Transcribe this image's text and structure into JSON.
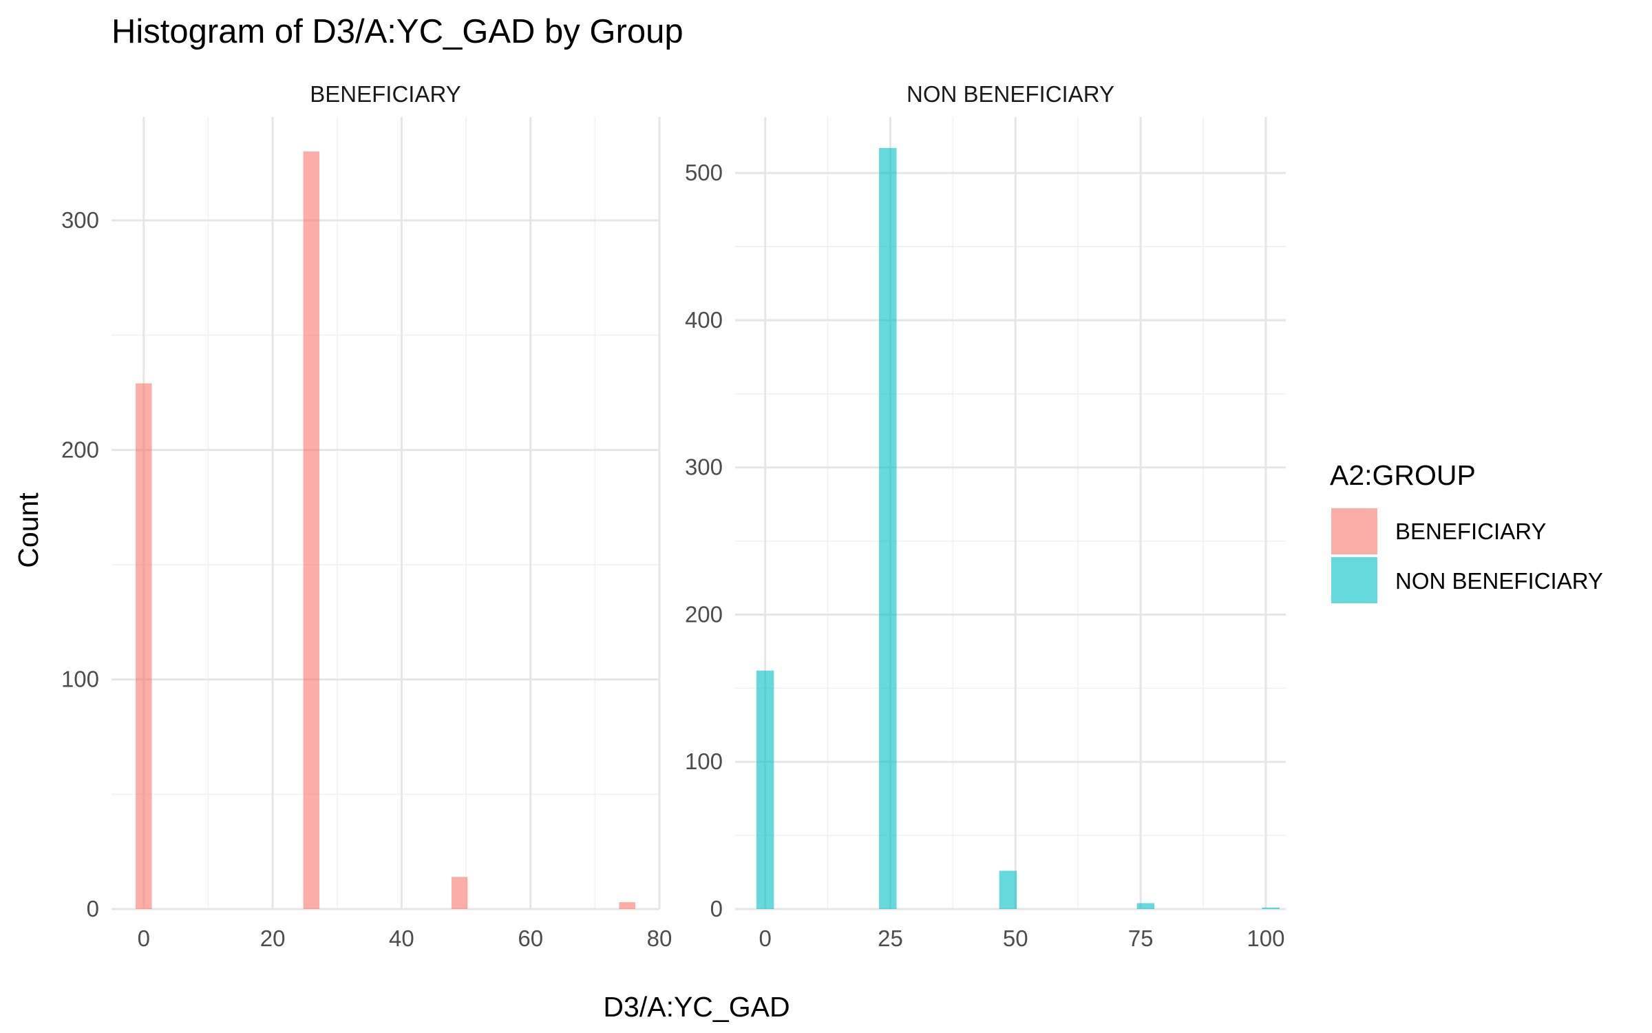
{
  "chart_data": {
    "type": "bar",
    "title": "Histogram of D3/A:YC_GAD by Group",
    "xlabel": "D3/A:YC_GAD",
    "ylabel": "Count",
    "legend": {
      "title": "A2:GROUP",
      "placement": "right",
      "entries": [
        {
          "label": "BENEFICIARY",
          "color": "#F8766D"
        },
        {
          "label": "NON BENEFICIARY",
          "color": "#00BFC4"
        }
      ]
    },
    "grid": true,
    "facets": [
      {
        "strip": "BENEFICIARY",
        "color": "#F8766D",
        "xlim": [
          -5,
          80
        ],
        "ylim": [
          0,
          345
        ],
        "x_ticks": [
          0,
          20,
          40,
          60,
          80
        ],
        "y_ticks": [
          0,
          100,
          200,
          300
        ],
        "bin_width": 2.5,
        "bins": [
          {
            "x": 0,
            "count": 229
          },
          {
            "x": 26,
            "count": 330
          },
          {
            "x": 49,
            "count": 14
          },
          {
            "x": 75,
            "count": 3
          }
        ]
      },
      {
        "strip": "NON BENEFICIARY",
        "color": "#00BFC4",
        "xlim": [
          -6,
          104
        ],
        "ylim": [
          0,
          538
        ],
        "x_ticks": [
          0,
          25,
          50,
          75,
          100
        ],
        "y_ticks": [
          0,
          100,
          200,
          300,
          400,
          500
        ],
        "bin_width": 3.5,
        "bins": [
          {
            "x": 0,
            "count": 162
          },
          {
            "x": 24.5,
            "count": 517
          },
          {
            "x": 48.5,
            "count": 26
          },
          {
            "x": 76,
            "count": 4
          },
          {
            "x": 101,
            "count": 1
          }
        ]
      }
    ]
  }
}
